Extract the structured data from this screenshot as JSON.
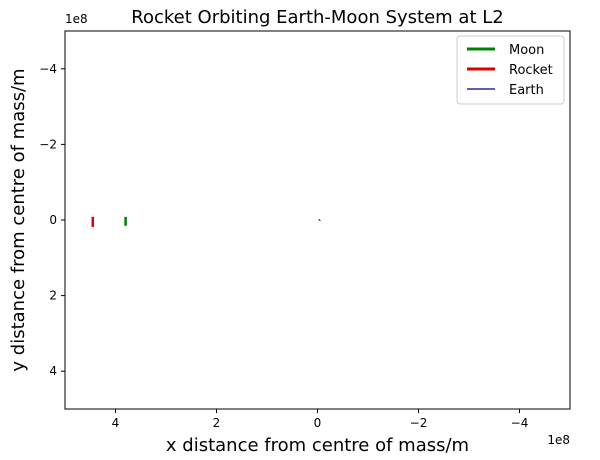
{
  "chart_data": {
    "type": "line",
    "title": "Rocket Orbiting Earth-Moon System at L2",
    "xlabel": "x distance from centre of mass/m",
    "ylabel": "y distance from centre of mass/m",
    "x_offset_label": "1e8",
    "y_offset_label": "1e8",
    "xlim": [
      5.0,
      -5.0
    ],
    "ylim": [
      -5.0,
      5.0
    ],
    "x_ticks": [
      {
        "value": 4,
        "label": "4"
      },
      {
        "value": 2,
        "label": "2"
      },
      {
        "value": 0,
        "label": "0"
      },
      {
        "value": -2,
        "label": "−2"
      },
      {
        "value": -4,
        "label": "−4"
      }
    ],
    "y_ticks": [
      {
        "value": -4,
        "label": "−4"
      },
      {
        "value": -2,
        "label": "−2"
      },
      {
        "value": 0,
        "label": "0"
      },
      {
        "value": 2,
        "label": "2"
      },
      {
        "value": 4,
        "label": "4"
      }
    ],
    "grid": false,
    "legend_position": "top-right",
    "series": [
      {
        "name": "Moon",
        "color": "#008000",
        "linewidth": 2.5,
        "x": [
          3.8,
          3.8
        ],
        "y": [
          -0.05,
          0.12
        ]
      },
      {
        "name": "Rocket",
        "color": "#dd0000",
        "linewidth": 2.5,
        "x": [
          4.45,
          4.45
        ],
        "y": [
          -0.05,
          0.15
        ]
      },
      {
        "name": "Earth",
        "color": "#000080",
        "linewidth": 1,
        "x": [
          -0.03,
          -0.05
        ],
        "y": [
          -0.01,
          0.01
        ]
      }
    ]
  }
}
